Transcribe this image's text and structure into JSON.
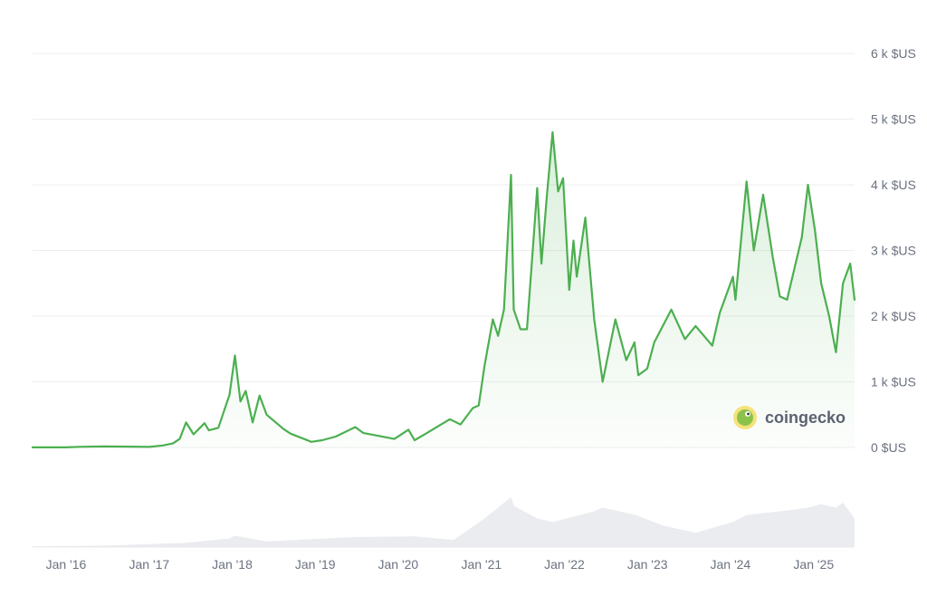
{
  "chart_data": {
    "type": "area",
    "title": "",
    "ylabel": "",
    "xlabel": "",
    "y_unit_suffix": " $US",
    "ylim": [
      0,
      6000
    ],
    "xlim": [
      "2015-08-07",
      "2025-06-30"
    ],
    "grid": true,
    "line_color": "#4caf50",
    "fill_color": "#4caf50",
    "volume_color": "#e5e7eb",
    "y_ticks": [
      {
        "value": 0,
        "label": "0 $US"
      },
      {
        "value": 1000,
        "label": "1 k $US"
      },
      {
        "value": 2000,
        "label": "2 k $US"
      },
      {
        "value": 3000,
        "label": "3 k $US"
      },
      {
        "value": 4000,
        "label": "4 k $US"
      },
      {
        "value": 5000,
        "label": "5 k $US"
      },
      {
        "value": 6000,
        "label": "6 k $US"
      }
    ],
    "x_ticks": [
      {
        "date": "2016-01-01",
        "label": "Jan '16"
      },
      {
        "date": "2017-01-01",
        "label": "Jan '17"
      },
      {
        "date": "2018-01-01",
        "label": "Jan '18"
      },
      {
        "date": "2019-01-01",
        "label": "Jan '19"
      },
      {
        "date": "2020-01-01",
        "label": "Jan '20"
      },
      {
        "date": "2021-01-01",
        "label": "Jan '21"
      },
      {
        "date": "2022-01-01",
        "label": "Jan '22"
      },
      {
        "date": "2023-01-01",
        "label": "Jan '23"
      },
      {
        "date": "2024-01-01",
        "label": "Jan '24"
      },
      {
        "date": "2025-01-01",
        "label": "Jan '25"
      }
    ],
    "series": [
      {
        "points": [
          [
            "2015-08-07",
            2
          ],
          [
            "2016-01-01",
            1
          ],
          [
            "2016-03-01",
            10
          ],
          [
            "2016-06-15",
            15
          ],
          [
            "2016-10-01",
            12
          ],
          [
            "2017-01-01",
            8
          ],
          [
            "2017-03-01",
            30
          ],
          [
            "2017-04-15",
            60
          ],
          [
            "2017-05-15",
            130
          ],
          [
            "2017-06-12",
            380
          ],
          [
            "2017-07-15",
            200
          ],
          [
            "2017-09-01",
            370
          ],
          [
            "2017-09-20",
            260
          ],
          [
            "2017-11-01",
            300
          ],
          [
            "2017-12-10",
            700
          ],
          [
            "2017-12-20",
            800
          ],
          [
            "2018-01-13",
            1400
          ],
          [
            "2018-02-06",
            700
          ],
          [
            "2018-03-01",
            860
          ],
          [
            "2018-04-01",
            380
          ],
          [
            "2018-05-01",
            790
          ],
          [
            "2018-06-01",
            500
          ],
          [
            "2018-08-15",
            280
          ],
          [
            "2018-09-15",
            210
          ],
          [
            "2018-11-20",
            120
          ],
          [
            "2018-12-15",
            85
          ],
          [
            "2019-02-01",
            110
          ],
          [
            "2019-04-01",
            165
          ],
          [
            "2019-06-26",
            310
          ],
          [
            "2019-08-01",
            220
          ],
          [
            "2019-10-01",
            180
          ],
          [
            "2019-12-15",
            130
          ],
          [
            "2020-02-15",
            270
          ],
          [
            "2020-03-13",
            110
          ],
          [
            "2020-05-01",
            210
          ],
          [
            "2020-08-15",
            430
          ],
          [
            "2020-10-01",
            350
          ],
          [
            "2020-11-24",
            600
          ],
          [
            "2020-12-20",
            640
          ],
          [
            "2021-01-15",
            1250
          ],
          [
            "2021-02-20",
            1950
          ],
          [
            "2021-03-15",
            1700
          ],
          [
            "2021-04-10",
            2100
          ],
          [
            "2021-05-11",
            4150
          ],
          [
            "2021-05-23",
            2100
          ],
          [
            "2021-06-22",
            1800
          ],
          [
            "2021-07-20",
            1800
          ],
          [
            "2021-08-20",
            3250
          ],
          [
            "2021-09-03",
            3950
          ],
          [
            "2021-09-22",
            2800
          ],
          [
            "2021-10-15",
            3800
          ],
          [
            "2021-11-10",
            4800
          ],
          [
            "2021-12-04",
            3900
          ],
          [
            "2021-12-26",
            4100
          ],
          [
            "2022-01-22",
            2400
          ],
          [
            "2022-02-10",
            3150
          ],
          [
            "2022-02-24",
            2600
          ],
          [
            "2022-04-03",
            3500
          ],
          [
            "2022-05-12",
            1950
          ],
          [
            "2022-06-18",
            1000
          ],
          [
            "2022-08-13",
            1950
          ],
          [
            "2022-09-30",
            1330
          ],
          [
            "2022-11-05",
            1600
          ],
          [
            "2022-11-22",
            1100
          ],
          [
            "2022-12-31",
            1200
          ],
          [
            "2023-01-31",
            1600
          ],
          [
            "2023-04-16",
            2100
          ],
          [
            "2023-06-15",
            1650
          ],
          [
            "2023-08-01",
            1850
          ],
          [
            "2023-10-13",
            1550
          ],
          [
            "2023-11-15",
            2050
          ],
          [
            "2024-01-12",
            2600
          ],
          [
            "2024-01-23",
            2250
          ],
          [
            "2024-03-12",
            4050
          ],
          [
            "2024-04-13",
            3000
          ],
          [
            "2024-05-24",
            3850
          ],
          [
            "2024-07-05",
            2900
          ],
          [
            "2024-08-05",
            2300
          ],
          [
            "2024-09-06",
            2250
          ],
          [
            "2024-11-10",
            3200
          ],
          [
            "2024-12-07",
            4000
          ],
          [
            "2025-01-07",
            3300
          ],
          [
            "2025-02-03",
            2500
          ],
          [
            "2025-03-10",
            2000
          ],
          [
            "2025-04-09",
            1450
          ],
          [
            "2025-05-10",
            2500
          ],
          [
            "2025-06-11",
            2800
          ],
          [
            "2025-06-30",
            2250
          ]
        ]
      }
    ],
    "volume": [
      [
        "2015-08-07",
        0.01
      ],
      [
        "2016-06-15",
        0.02
      ],
      [
        "2017-06-12",
        0.06
      ],
      [
        "2017-12-20",
        0.12
      ],
      [
        "2018-01-13",
        0.16
      ],
      [
        "2018-06-01",
        0.08
      ],
      [
        "2019-06-26",
        0.14
      ],
      [
        "2020-03-13",
        0.15
      ],
      [
        "2020-09-01",
        0.1
      ],
      [
        "2021-01-15",
        0.4
      ],
      [
        "2021-05-11",
        0.7
      ],
      [
        "2021-05-23",
        0.58
      ],
      [
        "2021-09-03",
        0.4
      ],
      [
        "2021-11-10",
        0.35
      ],
      [
        "2022-05-12",
        0.5
      ],
      [
        "2022-06-18",
        0.55
      ],
      [
        "2022-11-10",
        0.45
      ],
      [
        "2023-03-10",
        0.3
      ],
      [
        "2023-08-01",
        0.2
      ],
      [
        "2024-01-12",
        0.35
      ],
      [
        "2024-03-12",
        0.45
      ],
      [
        "2024-08-05",
        0.5
      ],
      [
        "2024-12-07",
        0.55
      ],
      [
        "2025-02-03",
        0.6
      ],
      [
        "2025-04-09",
        0.55
      ],
      [
        "2025-05-10",
        0.62
      ],
      [
        "2025-06-30",
        0.4
      ]
    ]
  },
  "watermark": {
    "text": "coingecko",
    "icon": "gecko-logo-icon"
  }
}
